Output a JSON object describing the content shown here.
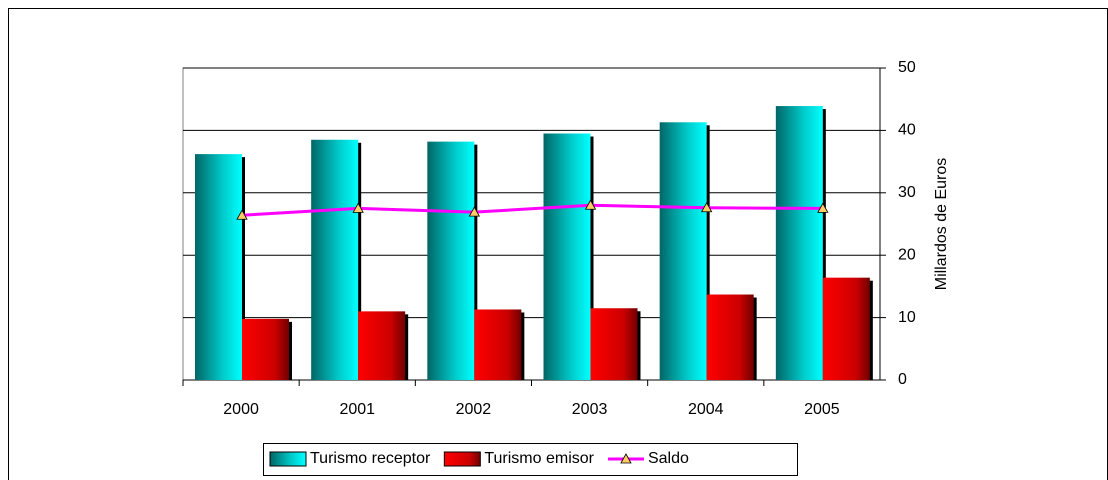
{
  "chart_data": {
    "type": "bar",
    "y_label": "Millardos de Euros",
    "categories": [
      "2000",
      "2001",
      "2002",
      "2003",
      "2004",
      "2005"
    ],
    "series": [
      {
        "name": "Turismo receptor",
        "type": "bar",
        "color": "#00e5e5",
        "values": [
          36.2,
          38.5,
          38.2,
          39.5,
          41.3,
          43.9
        ]
      },
      {
        "name": "Turismo emisor",
        "type": "bar",
        "color": "#e00000",
        "values": [
          9.8,
          11.0,
          11.3,
          11.5,
          13.7,
          16.4
        ]
      },
      {
        "name": "Saldo",
        "type": "line",
        "color": "#ff00ff",
        "values": [
          26.4,
          27.5,
          26.9,
          28.0,
          27.6,
          27.5
        ]
      }
    ],
    "ylim": [
      0,
      50
    ],
    "yticks": [
      0,
      10,
      20,
      30,
      40,
      50
    ],
    "grid": true,
    "y_axis_side": "right",
    "legend": "bottom"
  }
}
